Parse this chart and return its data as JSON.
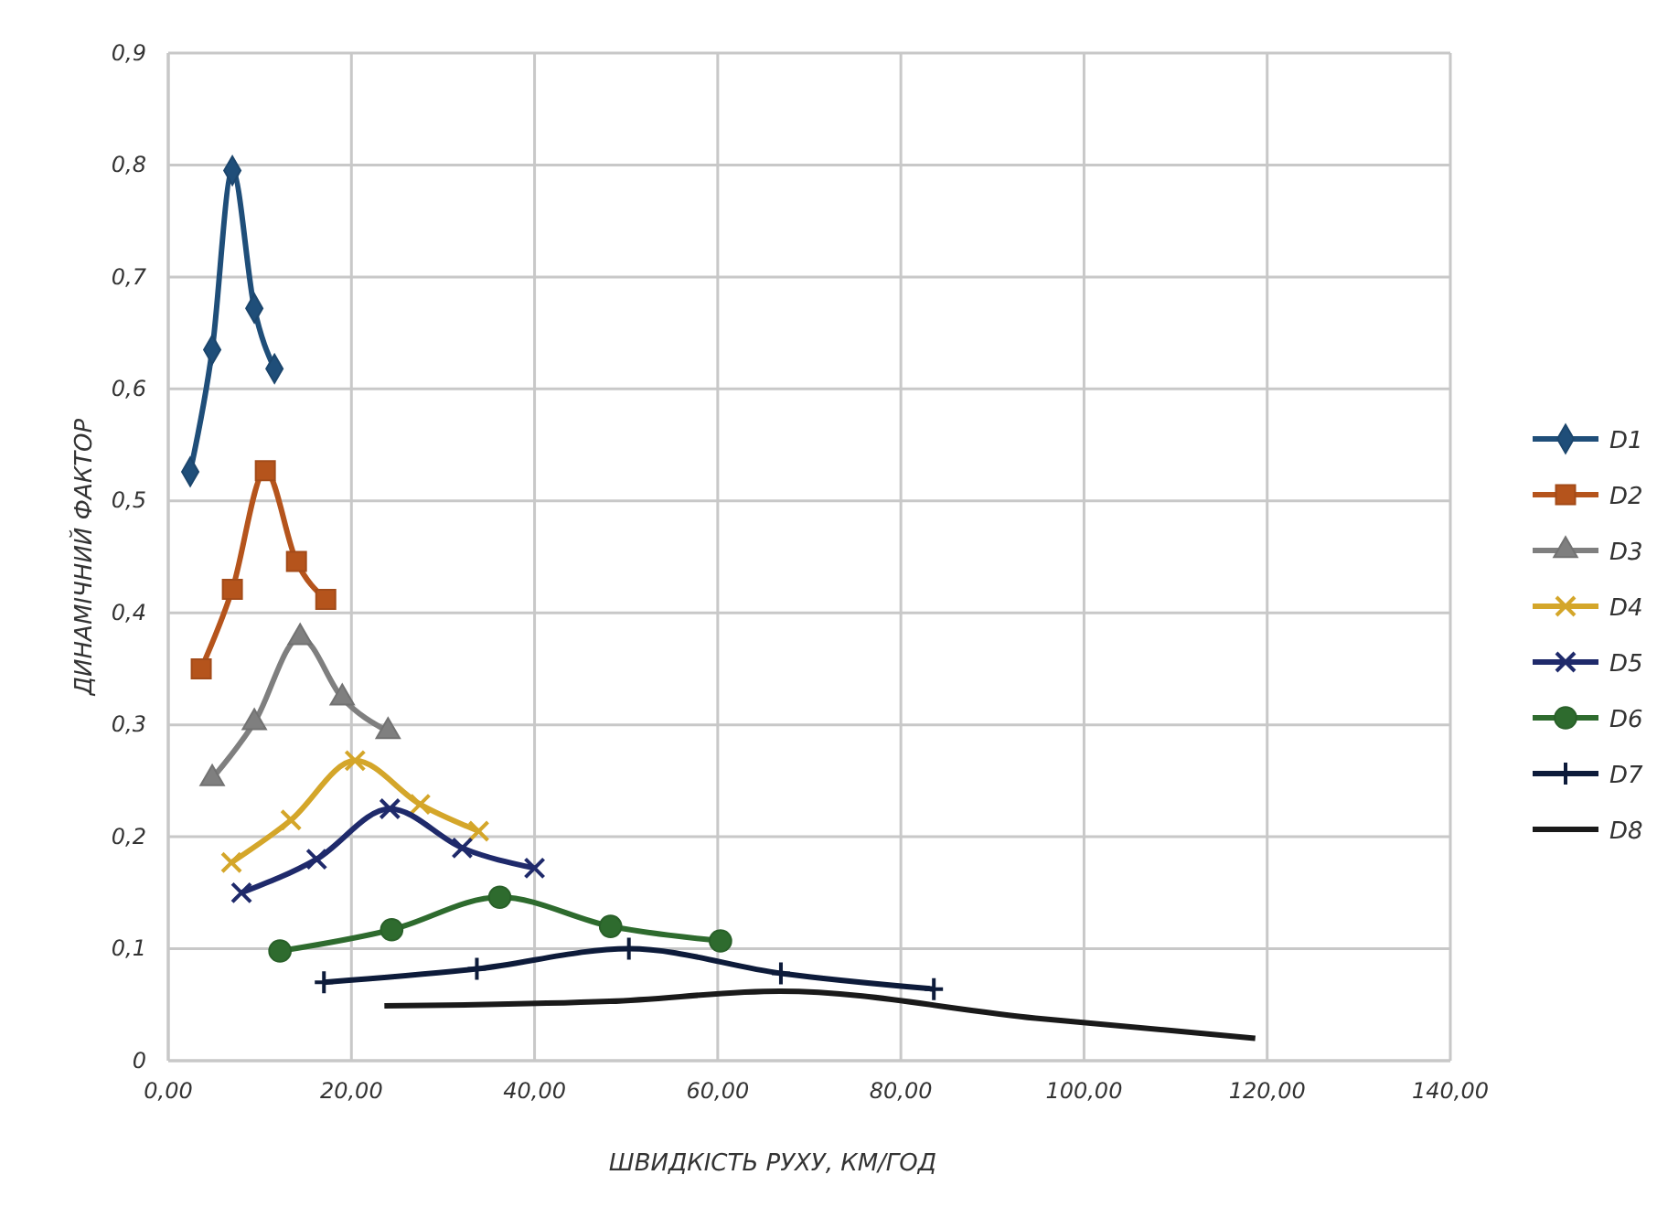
{
  "chart_data": {
    "type": "line",
    "xlabel": "ШВИДКІСТЬ  РУХУ, КМ/ГОД",
    "ylabel": "ДИНАМІЧНИЙ ФАКТОР",
    "xlim": [
      0,
      140
    ],
    "ylim": [
      0,
      0.9
    ],
    "xticks": [
      {
        "value": 0,
        "label": "0,00"
      },
      {
        "value": 20,
        "label": "20,00"
      },
      {
        "value": 40,
        "label": "40,00"
      },
      {
        "value": 60,
        "label": "60,00"
      },
      {
        "value": 80,
        "label": "80,00"
      },
      {
        "value": 100,
        "label": "100,00"
      },
      {
        "value": 120,
        "label": "120,00"
      },
      {
        "value": 140,
        "label": "140,00"
      }
    ],
    "yticks": [
      0,
      {
        "value": 0.1,
        "label": "0,1"
      },
      {
        "value": 0.2,
        "label": "0,2"
      },
      {
        "value": 0.3,
        "label": "0,3"
      },
      {
        "value": 0.4,
        "label": "0,4"
      },
      {
        "value": 0.5,
        "label": "0,5"
      },
      {
        "value": 0.6,
        "label": "0,6"
      },
      {
        "value": 0.7,
        "label": "0,7"
      },
      {
        "value": 0.8,
        "label": "0,8"
      },
      {
        "value": 0.9,
        "label": "0,9"
      }
    ],
    "grid": true,
    "legend": "right",
    "series": [
      {
        "name": "D1",
        "color": "#1f4e79",
        "marker": "diamond",
        "x": [
          2.4,
          4.8,
          7.0,
          9.4,
          11.6
        ],
        "values": [
          0.526,
          0.635,
          0.795,
          0.672,
          0.618
        ]
      },
      {
        "name": "D2",
        "color": "#b5541c",
        "marker": "square",
        "x": [
          3.6,
          7.0,
          10.6,
          14.0,
          17.2
        ],
        "values": [
          0.35,
          0.421,
          0.527,
          0.446,
          0.412
        ]
      },
      {
        "name": "D3",
        "color": "#7f7f7f",
        "marker": "triangle",
        "x": [
          4.8,
          9.4,
          14.4,
          19.0,
          24.0
        ],
        "values": [
          0.252,
          0.302,
          0.378,
          0.324,
          0.294
        ]
      },
      {
        "name": "D4",
        "color": "#d4a62a",
        "marker": "cross",
        "x": [
          6.9,
          13.4,
          20.4,
          27.5,
          33.9
        ],
        "values": [
          0.177,
          0.215,
          0.268,
          0.229,
          0.205
        ]
      },
      {
        "name": "D5",
        "color": "#1f2a6b",
        "marker": "cross",
        "x": [
          8.0,
          16.2,
          24.2,
          32.1,
          40.0
        ],
        "values": [
          0.15,
          0.18,
          0.225,
          0.19,
          0.172
        ]
      },
      {
        "name": "D6",
        "color": "#2e6b2e",
        "marker": "circle",
        "x": [
          12.2,
          24.4,
          36.2,
          48.3,
          60.3
        ],
        "values": [
          0.098,
          0.117,
          0.146,
          0.12,
          0.107
        ]
      },
      {
        "name": "D7",
        "color": "#0d1b3a",
        "marker": "plus",
        "x": [
          17.0,
          33.7,
          50.3,
          66.9,
          83.6
        ],
        "values": [
          0.07,
          0.082,
          0.1,
          0.078,
          0.064
        ]
      },
      {
        "name": "D8",
        "color": "#1a1a1a",
        "marker": "none",
        "x": [
          23.6,
          48.2,
          66.8,
          94.7,
          118.7
        ],
        "values": [
          0.049,
          0.053,
          0.062,
          0.038,
          0.02
        ]
      }
    ]
  }
}
